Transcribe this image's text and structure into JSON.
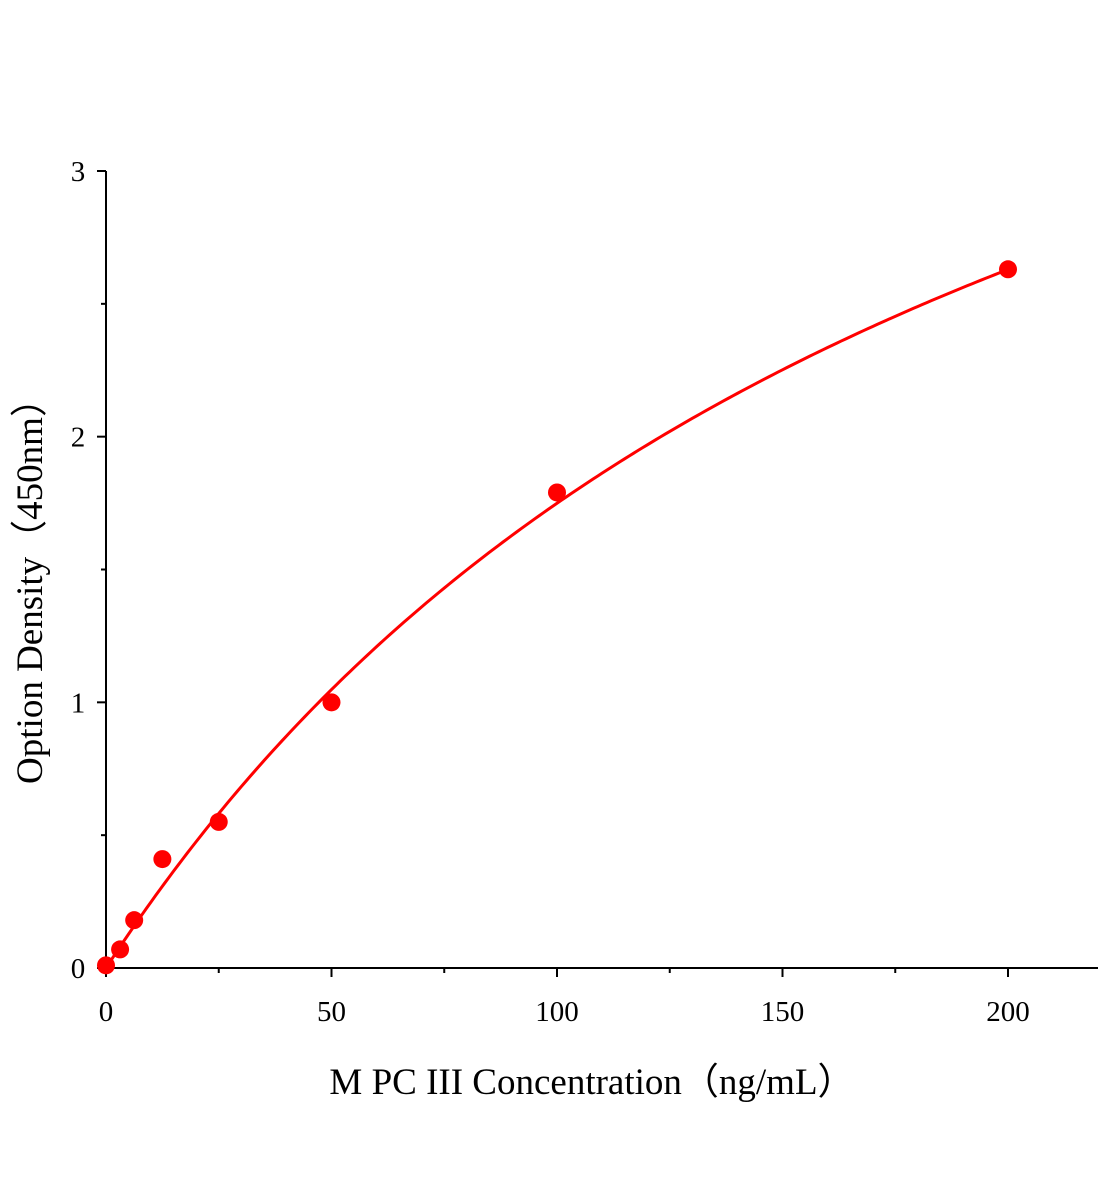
{
  "chart_data": {
    "type": "scatter",
    "title": "",
    "xlabel": "M PC III Concentration（ng/mL）",
    "ylabel": "Option Density（450nm）",
    "xlim": [
      0,
      220
    ],
    "ylim": [
      0,
      3
    ],
    "x_ticks": [
      0,
      50,
      100,
      150,
      200
    ],
    "x_tick_labels": [
      "0",
      "50",
      "100",
      "150",
      "200"
    ],
    "x_minor_ticks": [
      25,
      75,
      125,
      175
    ],
    "y_ticks": [
      0,
      1,
      2,
      3
    ],
    "y_tick_labels": [
      "0",
      "1",
      "2",
      "3"
    ],
    "y_minor_ticks": [
      0.5,
      1.5,
      2.5
    ],
    "grid": false,
    "color": "#ff0000",
    "points": {
      "x": [
        0,
        3.125,
        6.25,
        12.5,
        25,
        50,
        100,
        200
      ],
      "y": [
        0.01,
        0.07,
        0.18,
        0.41,
        0.55,
        1.0,
        1.79,
        2.63
      ]
    },
    "fit_curve": {
      "model": "y = a*x/(b+x)",
      "a": 5.29,
      "b": 202.4,
      "x_range": [
        0,
        200
      ]
    }
  }
}
